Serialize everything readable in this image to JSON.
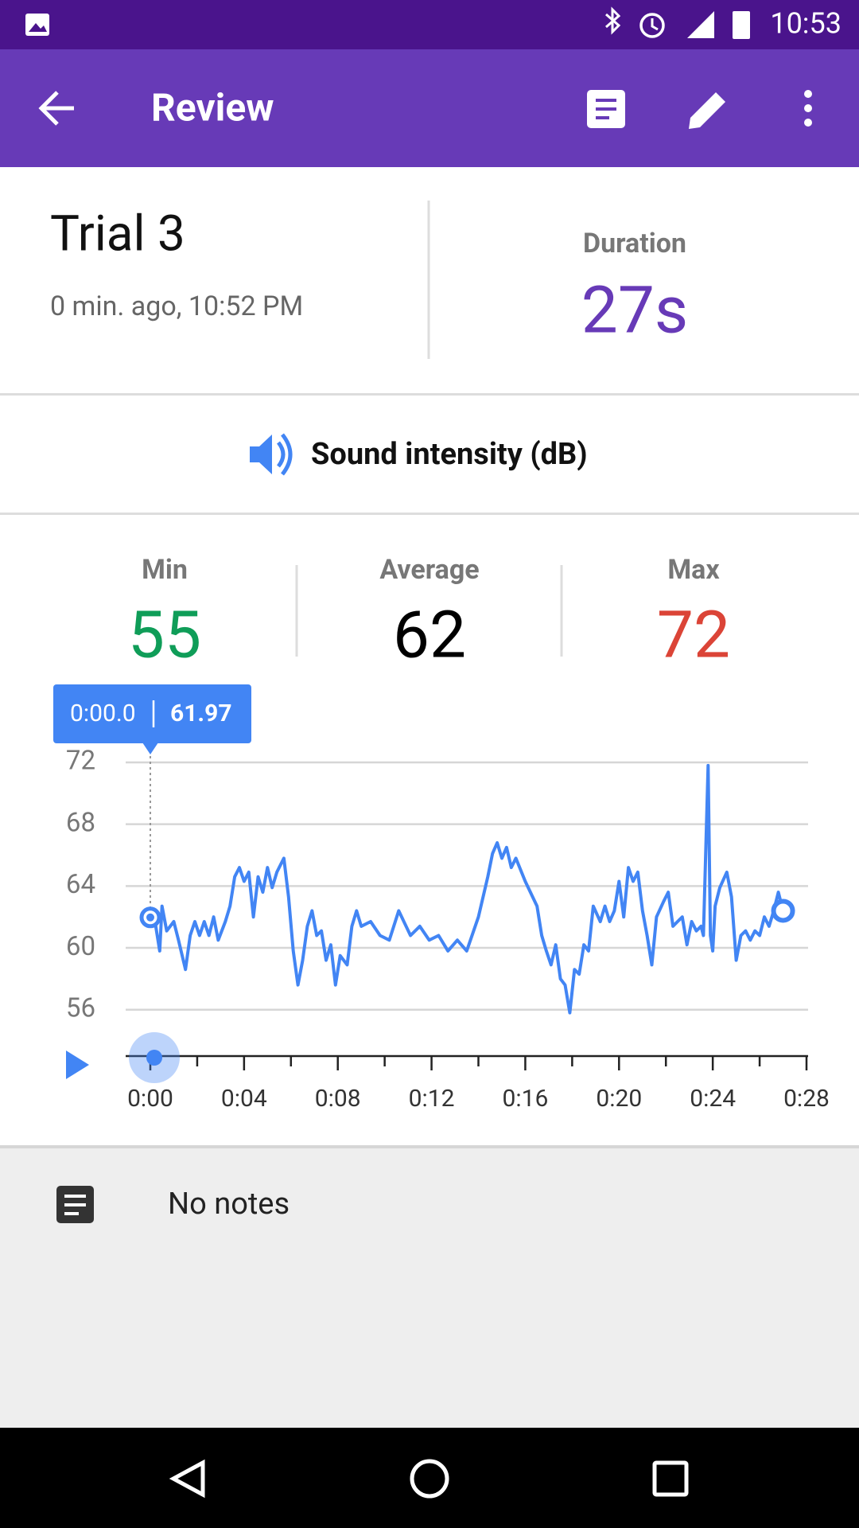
{
  "status_bar": {
    "time": "10:53"
  },
  "app_bar": {
    "title": "Review"
  },
  "trial": {
    "name": "Trial 3",
    "subtitle": "0 min. ago, 10:52 PM",
    "duration_label": "Duration",
    "duration": "27s"
  },
  "sensor": {
    "name": "Sound intensity (dB)"
  },
  "stats": [
    {
      "label": "Min",
      "value": 55,
      "color": "#0f9d58"
    },
    {
      "label": "Average",
      "value": 62,
      "color": "#000000"
    },
    {
      "label": "Max",
      "value": 72,
      "color": "#db4437"
    }
  ],
  "tooltip": {
    "time": "0:00.0",
    "value": 61.97
  },
  "chart_data": {
    "type": "line",
    "color": "#4285f4",
    "grid": true,
    "xlim": [
      0,
      28
    ],
    "ylim": [
      53,
      72
    ],
    "yticks": [
      56,
      60,
      64,
      68,
      72
    ],
    "xticks": [
      {
        "value": 0,
        "label": "0:00"
      },
      {
        "value": 4,
        "label": "0:04"
      },
      {
        "value": 8,
        "label": "0:08"
      },
      {
        "value": 12,
        "label": "0:12"
      },
      {
        "value": 16,
        "label": "0:16"
      },
      {
        "value": 20,
        "label": "0:20"
      },
      {
        "value": 24,
        "label": "0:24"
      },
      {
        "value": 28,
        "label": "0:28"
      }
    ],
    "xminorticks": [
      2,
      6,
      10,
      14,
      18,
      22,
      26
    ],
    "x": [
      0.0,
      0.2,
      0.4,
      0.5,
      0.7,
      1.0,
      1.2,
      1.5,
      1.7,
      1.9,
      2.1,
      2.3,
      2.5,
      2.7,
      2.9,
      3.2,
      3.4,
      3.6,
      3.8,
      4.0,
      4.2,
      4.4,
      4.6,
      4.8,
      5.0,
      5.2,
      5.4,
      5.7,
      5.9,
      6.1,
      6.3,
      6.5,
      6.7,
      6.9,
      7.1,
      7.3,
      7.5,
      7.7,
      7.9,
      8.1,
      8.4,
      8.6,
      8.8,
      9.0,
      9.4,
      9.8,
      10.2,
      10.6,
      11.1,
      11.5,
      11.9,
      12.3,
      12.7,
      13.1,
      13.5,
      14.0,
      14.4,
      14.6,
      14.8,
      15.0,
      15.2,
      15.4,
      15.6,
      16.0,
      16.5,
      16.7,
      16.9,
      17.1,
      17.3,
      17.5,
      17.7,
      17.9,
      18.1,
      18.3,
      18.5,
      18.7,
      18.9,
      19.2,
      19.4,
      19.6,
      19.8,
      20.0,
      20.2,
      20.4,
      20.6,
      20.8,
      21.0,
      21.2,
      21.4,
      21.6,
      21.9,
      22.1,
      22.3,
      22.5,
      22.7,
      22.9,
      23.1,
      23.3,
      23.5,
      23.6,
      23.8,
      23.9,
      24.0,
      24.1,
      24.3,
      24.6,
      24.8,
      25.0,
      25.2,
      25.4,
      25.6,
      25.8,
      26.0,
      26.2,
      26.4,
      26.6,
      26.8,
      27.0
    ],
    "values": [
      61.97,
      61.7,
      59.8,
      62.7,
      61.1,
      61.7,
      60.5,
      58.6,
      60.8,
      61.7,
      60.8,
      61.7,
      60.8,
      62.0,
      60.5,
      61.7,
      62.7,
      64.6,
      65.2,
      64.3,
      64.9,
      62.0,
      64.6,
      63.6,
      65.2,
      63.9,
      64.9,
      65.8,
      63.3,
      59.8,
      57.6,
      59.2,
      61.4,
      62.4,
      60.8,
      61.1,
      59.2,
      60.2,
      57.6,
      59.5,
      58.9,
      61.4,
      62.4,
      61.4,
      61.7,
      60.8,
      60.5,
      62.4,
      60.8,
      61.4,
      60.5,
      60.8,
      59.8,
      60.5,
      59.8,
      62.0,
      64.6,
      66.1,
      66.8,
      65.8,
      66.5,
      65.2,
      65.8,
      64.3,
      62.7,
      60.8,
      59.8,
      58.9,
      60.2,
      58.0,
      57.6,
      55.8,
      58.6,
      58.3,
      60.2,
      59.8,
      62.7,
      61.7,
      62.7,
      61.7,
      62.4,
      64.3,
      62.0,
      65.2,
      64.3,
      64.9,
      62.4,
      60.8,
      58.9,
      62.0,
      63.0,
      63.6,
      61.4,
      61.7,
      62.0,
      60.2,
      61.7,
      61.1,
      61.4,
      60.8,
      71.8,
      60.8,
      59.8,
      62.7,
      63.9,
      64.9,
      63.3,
      59.2,
      60.8,
      61.1,
      60.5,
      61.1,
      60.8,
      62.0,
      61.4,
      62.4,
      63.6,
      62.4
    ]
  },
  "notes": {
    "text": "No notes"
  }
}
